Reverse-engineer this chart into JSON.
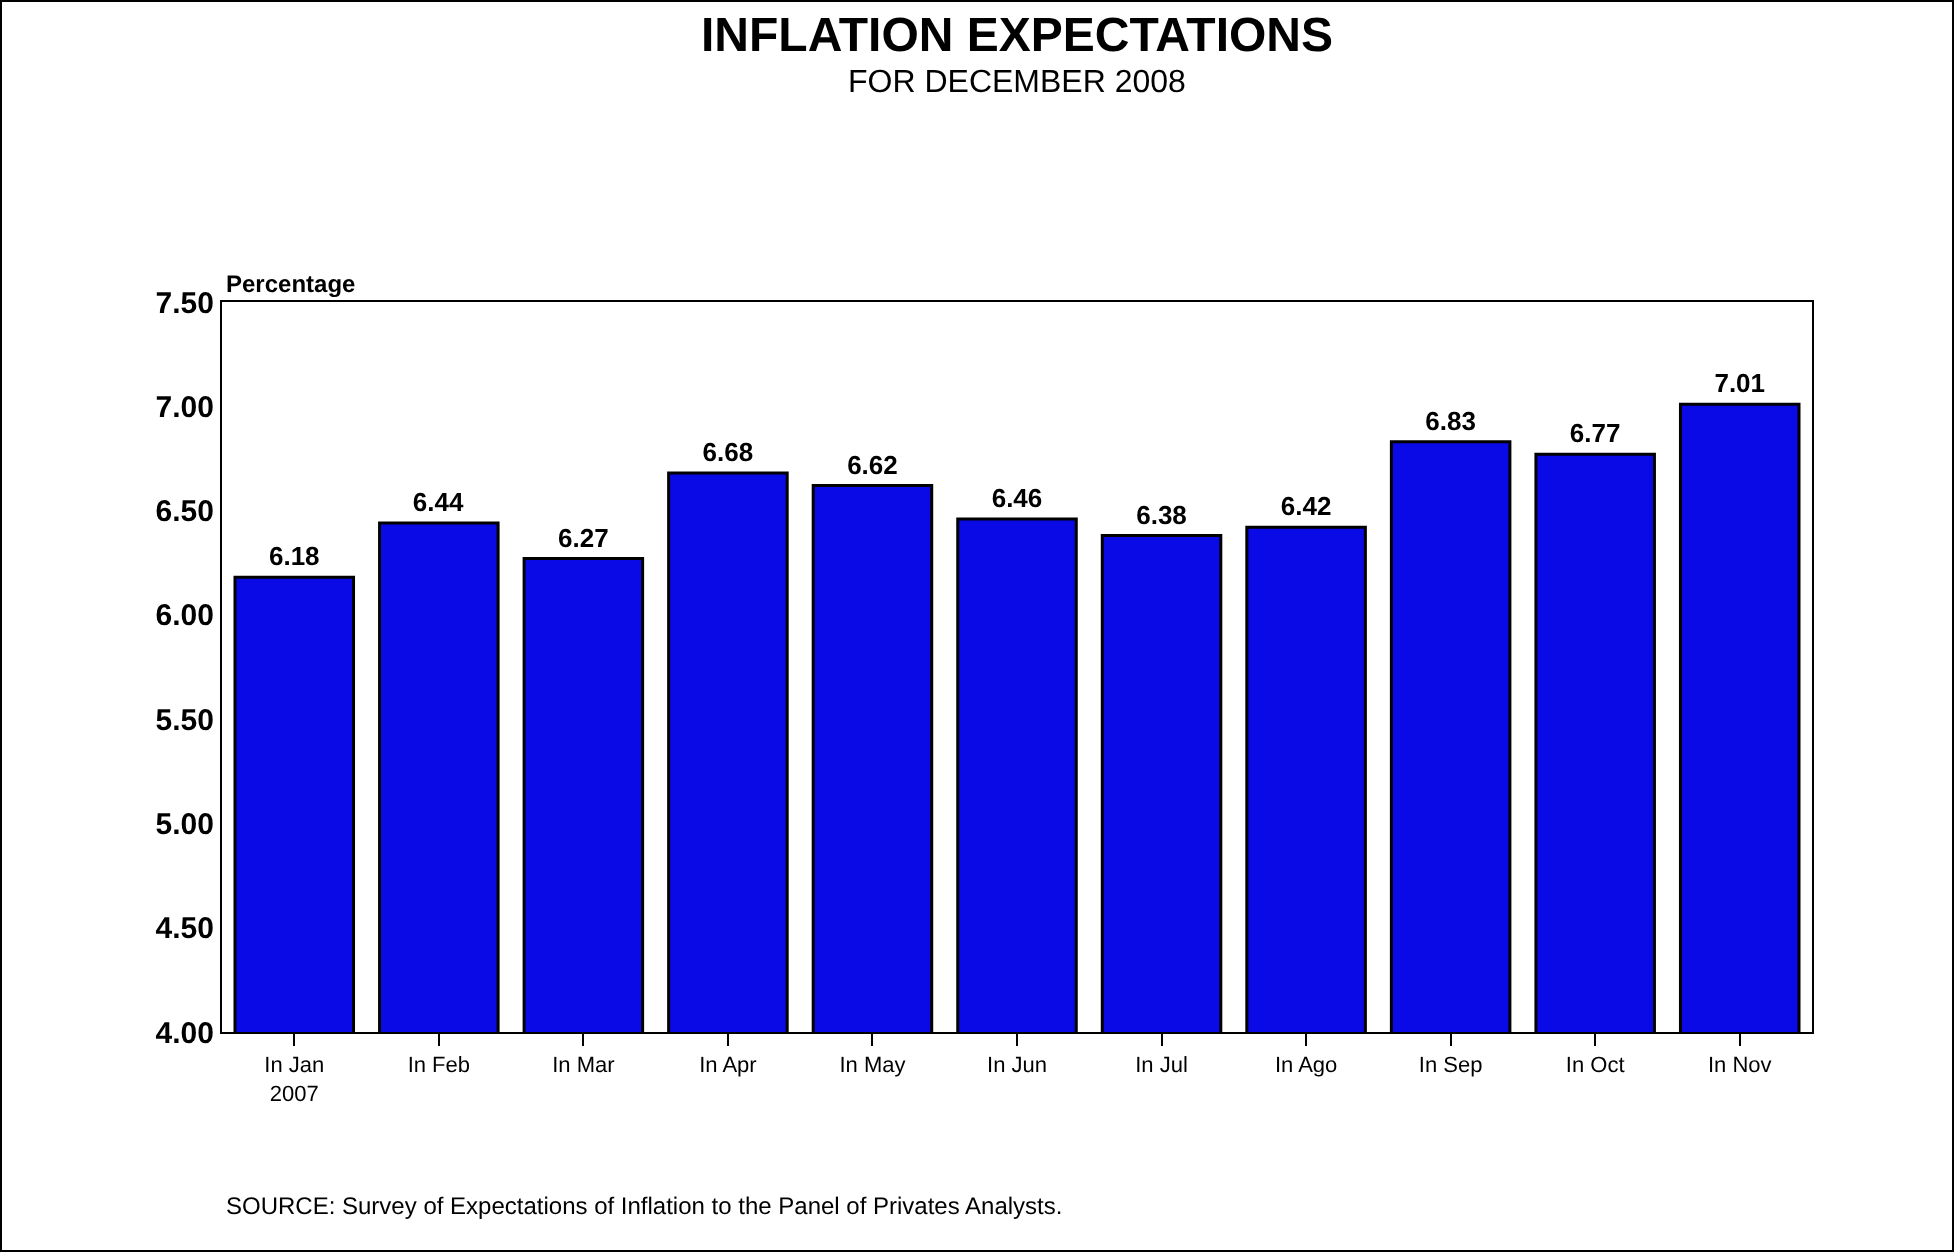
{
  "chart_data": {
    "type": "bar",
    "title": "INFLATION EXPECTATIONS",
    "subtitle": "FOR DECEMBER 2008",
    "ylabel": "Percentage",
    "categories": [
      "In Jan\n2007",
      "In Feb",
      "In Mar",
      "In Apr",
      "In May",
      "In Jun",
      "In Jul",
      "In Ago",
      "In Sep",
      "In Oct",
      "In Nov"
    ],
    "values": [
      6.18,
      6.44,
      6.27,
      6.68,
      6.62,
      6.46,
      6.38,
      6.42,
      6.83,
      6.77,
      7.01
    ],
    "color": "#0a0ae6",
    "ylim": [
      4.0,
      7.5
    ],
    "yticks": [
      {
        "value": 4.0,
        "label": "4.00"
      },
      {
        "value": 4.5,
        "label": "4.50"
      },
      {
        "value": 5.0,
        "label": "5.00"
      },
      {
        "value": 5.5,
        "label": "5.50"
      },
      {
        "value": 6.0,
        "label": "6.00"
      },
      {
        "value": 6.5,
        "label": "6.50"
      },
      {
        "value": 7.0,
        "label": "7.00"
      },
      {
        "value": 7.5,
        "label": "7.50"
      }
    ],
    "grid": false,
    "data_labels": true,
    "annotations": [
      "SOURCE: Survey of Expectations of Inflation to the Panel of Privates Analysts."
    ]
  }
}
